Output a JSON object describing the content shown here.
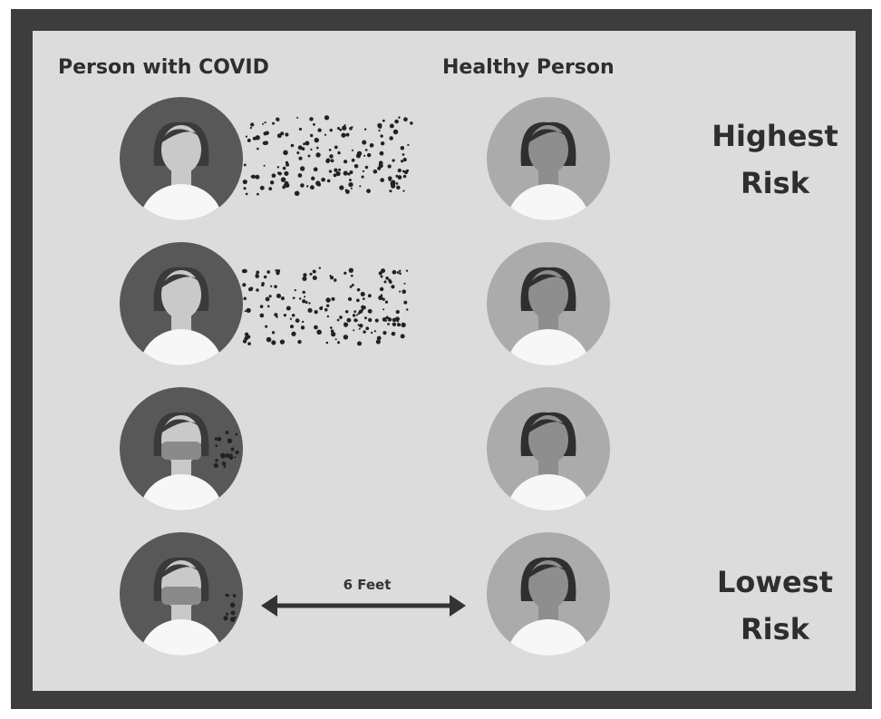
{
  "headers": {
    "infected": "Person with COVID",
    "healthy": "Healthy Person"
  },
  "risk_labels": {
    "highest": "Highest Risk",
    "lowest": "Lowest Risk"
  },
  "distance_label": "6 Feet"
}
